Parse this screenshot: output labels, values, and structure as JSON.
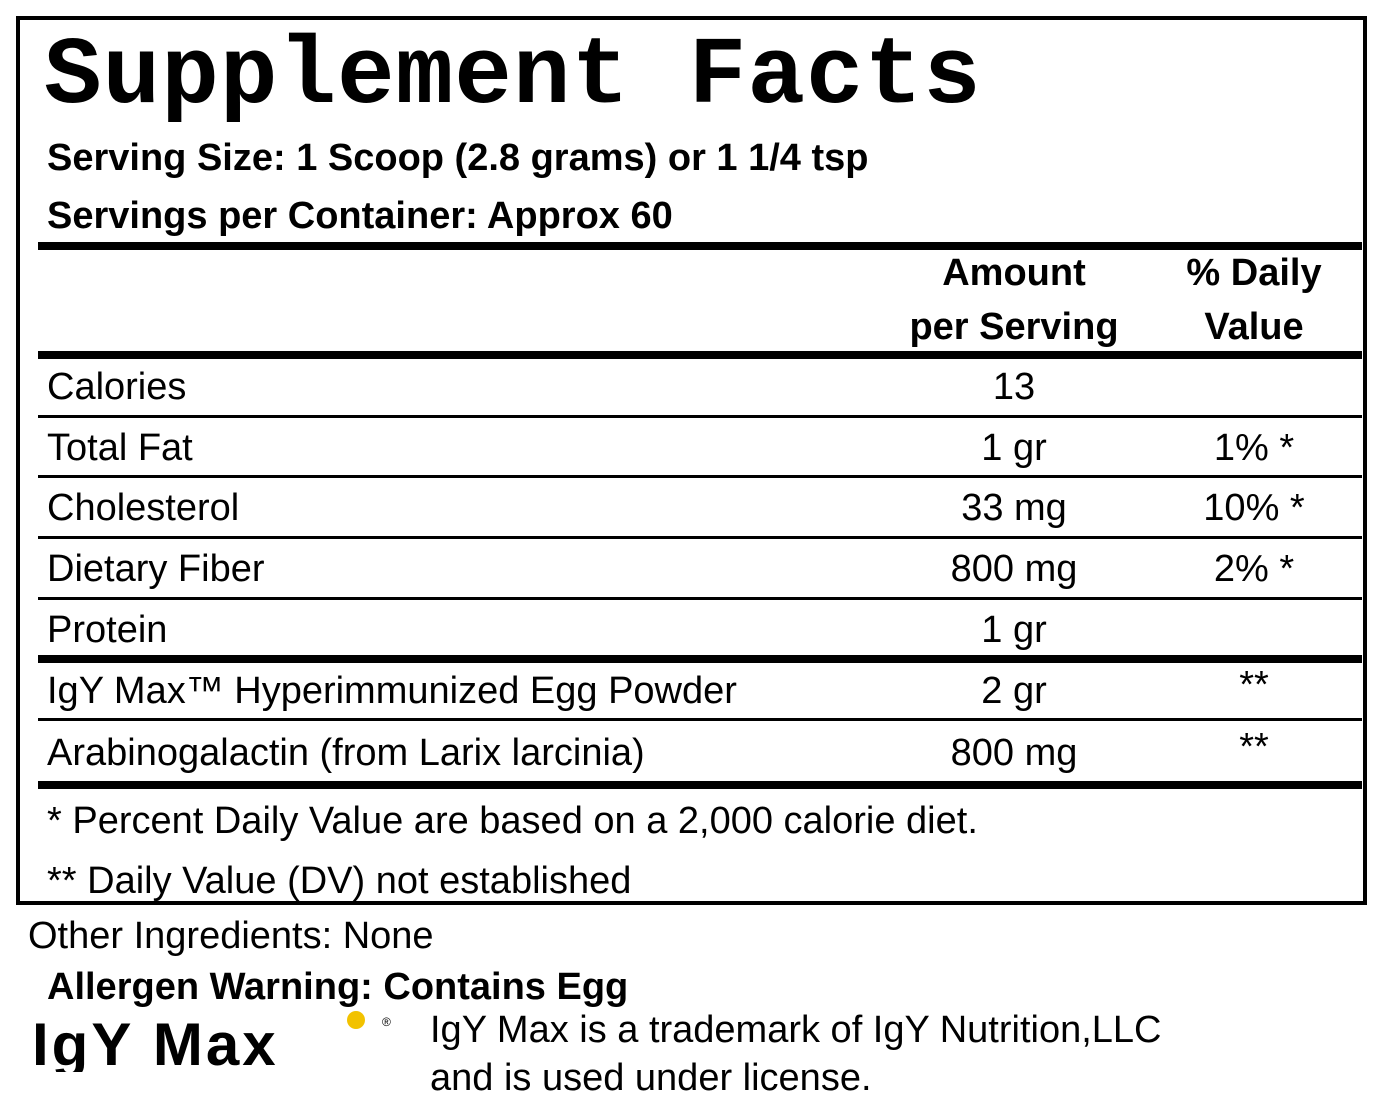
{
  "title": "Supplement Facts",
  "serving_size": "Serving Size: 1 Scoop (2.8 grams) or 1 1/4 tsp",
  "servings_per_container": "Servings per Container: Approx 60",
  "header": {
    "amount_line1": "Amount",
    "amount_line2": "per Serving",
    "dv_line1": "% Daily",
    "dv_line2": "Value"
  },
  "rows": [
    {
      "name": "Calories",
      "amount": "13",
      "dv": ""
    },
    {
      "name": "Total Fat",
      "amount": "1 gr",
      "dv": "1% *"
    },
    {
      "name": "Cholesterol",
      "amount": "33 mg",
      "dv": "10% *"
    },
    {
      "name": "Dietary Fiber",
      "amount": "800 mg",
      "dv": "2% *"
    },
    {
      "name": "Protein",
      "amount": "1 gr",
      "dv": ""
    },
    {
      "name": "IgY Max™  Hyperimmunized Egg Powder",
      "amount": "2 gr",
      "dv": "**"
    },
    {
      "name": "Arabinogalactin (from Larix larcinia)",
      "amount": "800 mg",
      "dv": "**"
    }
  ],
  "footnotes": {
    "percent_note": "* Percent Daily Value are based on a 2,000 calorie diet.",
    "dv_note": "** Daily Value (DV) not established"
  },
  "other_ingredients": "Other Ingredients: None",
  "allergen_warning": "Allergen Warning: Contains Egg",
  "logo": {
    "text": "IgY Max",
    "registered_mark": "®",
    "accent_color": "#f2c200"
  },
  "trademark_note": {
    "line1": "IgY Max is a trademark of IgY Nutrition,LLC",
    "line2": "and is used under license."
  }
}
